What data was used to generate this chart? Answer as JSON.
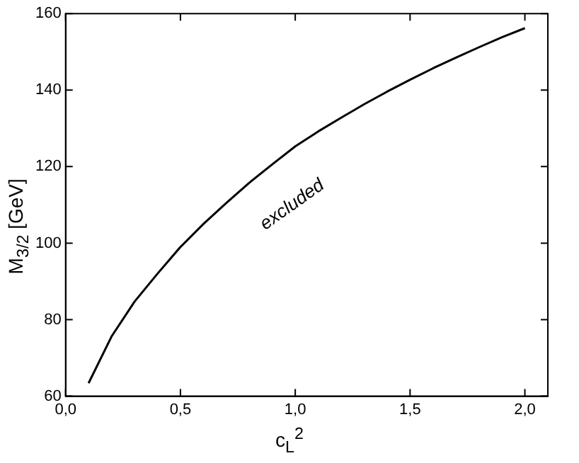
{
  "chart_data": {
    "type": "line",
    "xlabel": "c$_{L}$$^{2}$",
    "ylabel": "M$_{3/2}$ [GeV]",
    "x": [
      0.1,
      0.2,
      0.3,
      0.4,
      0.5,
      0.6,
      0.7,
      0.8,
      0.9,
      1.0,
      1.1,
      1.2,
      1.3,
      1.4,
      1.5,
      1.6,
      1.7,
      1.8,
      1.9,
      2.0
    ],
    "series": [
      {
        "color": "#000000",
        "values": [
          63.4,
          75.6,
          84.7,
          92,
          99,
          105,
          110.5,
          115.8,
          120.6,
          125.3,
          129.2,
          132.8,
          136.3,
          139.6,
          142.7,
          145.7,
          148.5,
          151.2,
          153.8,
          156.2
        ]
      }
    ],
    "xlim": [
      0,
      2.1
    ],
    "ylim": [
      60,
      160
    ],
    "xticks": [
      {
        "value": 0,
        "label": "0,0"
      },
      {
        "value": 0.5,
        "label": "0,5"
      },
      {
        "value": 1,
        "label": "1,0"
      },
      {
        "value": 1.5,
        "label": "1,5"
      },
      {
        "value": 2,
        "label": "2,0"
      }
    ],
    "yticks": [
      60,
      80,
      100,
      120,
      140,
      160
    ],
    "grid": false,
    "legend": false,
    "marker": "none",
    "line_style": "solid",
    "annotations": [
      "excluded"
    ]
  }
}
